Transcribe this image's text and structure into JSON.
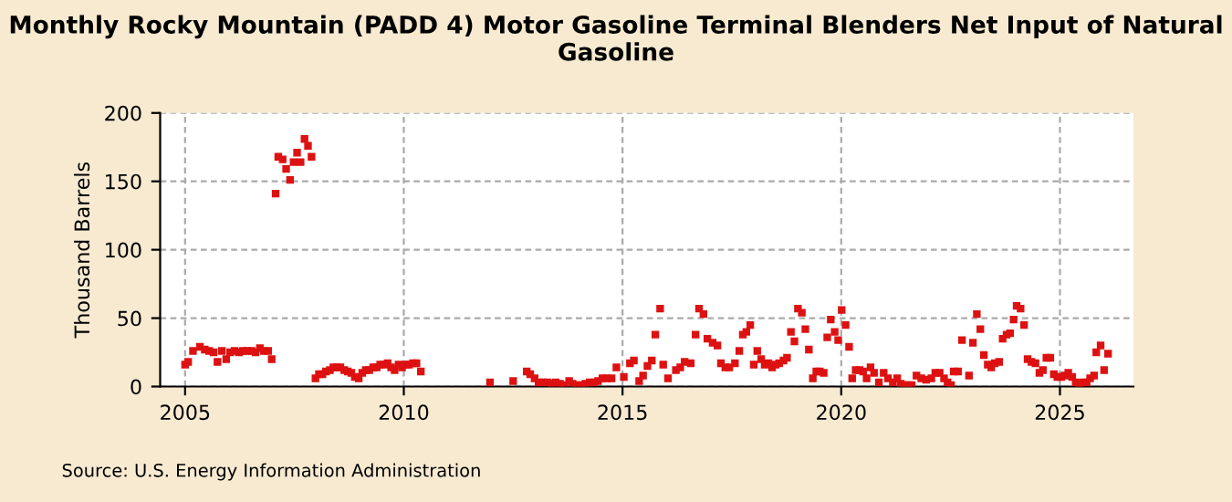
{
  "chart_data": {
    "type": "scatter",
    "title": "Monthly Rocky Mountain (PADD 4) Motor Gasoline Terminal Blenders Net Input of Natural Gasoline",
    "ylabel": "Thousand Barrels",
    "annotations": [
      "Source: U.S. Energy Information Administration"
    ],
    "series": [
      {
        "color": "#dd1111",
        "x": [
          2005.0,
          2005.07,
          2005.18,
          2005.34,
          2005.45,
          2005.55,
          2005.65,
          2005.74,
          2005.84,
          2005.94,
          2006.03,
          2006.13,
          2006.23,
          2006.32,
          2006.42,
          2006.52,
          2006.61,
          2006.71,
          2006.8,
          2006.9,
          2006.98,
          2007.07,
          2007.13,
          2007.23,
          2007.31,
          2007.4,
          2007.48,
          2007.56,
          2007.64,
          2007.73,
          2007.81,
          2007.89,
          2007.98,
          2008.06,
          2008.14,
          2008.22,
          2008.31,
          2008.39,
          2008.47,
          2008.55,
          2008.64,
          2008.72,
          2008.8,
          2008.88,
          2008.97,
          2009.05,
          2009.13,
          2009.21,
          2009.3,
          2009.38,
          2009.46,
          2009.55,
          2009.63,
          2009.71,
          2009.79,
          2009.88,
          2009.96,
          2010.04,
          2010.12,
          2010.21,
          2010.29,
          2010.39,
          2011.97,
          2012.5,
          2012.81,
          2012.89,
          2012.99,
          2013.08,
          2013.18,
          2013.28,
          2013.38,
          2013.47,
          2013.57,
          2013.67,
          2013.78,
          2013.86,
          2013.96,
          2014.06,
          2014.15,
          2014.25,
          2014.35,
          2014.44,
          2014.54,
          2014.64,
          2014.75,
          2014.86,
          2015.03,
          2015.17,
          2015.26,
          2015.38,
          2015.47,
          2015.57,
          2015.67,
          2015.75,
          2015.86,
          2015.93,
          2016.04,
          2016.22,
          2016.32,
          2016.42,
          2016.56,
          2016.67,
          2016.75,
          2016.85,
          2016.94,
          2017.06,
          2017.17,
          2017.25,
          2017.35,
          2017.44,
          2017.57,
          2017.67,
          2017.75,
          2017.83,
          2017.92,
          2018.0,
          2018.08,
          2018.17,
          2018.25,
          2018.33,
          2018.42,
          2018.5,
          2018.58,
          2018.68,
          2018.76,
          2018.85,
          2018.93,
          2019.01,
          2019.1,
          2019.18,
          2019.26,
          2019.35,
          2019.43,
          2019.51,
          2019.6,
          2019.68,
          2019.76,
          2019.85,
          2019.93,
          2020.01,
          2020.1,
          2020.18,
          2020.25,
          2020.33,
          2020.42,
          2020.5,
          2020.58,
          2020.67,
          2020.75,
          2020.86,
          2020.97,
          2021.07,
          2021.18,
          2021.28,
          2021.36,
          2021.44,
          2021.53,
          2021.61,
          2021.72,
          2021.83,
          2021.94,
          2022.06,
          2022.15,
          2022.25,
          2022.35,
          2022.43,
          2022.51,
          2022.57,
          2022.67,
          2022.76,
          2022.92,
          2023.01,
          2023.1,
          2023.18,
          2023.26,
          2023.35,
          2023.43,
          2023.51,
          2023.61,
          2023.69,
          2023.78,
          2023.86,
          2023.94,
          2024.01,
          2024.1,
          2024.18,
          2024.26,
          2024.35,
          2024.44,
          2024.53,
          2024.61,
          2024.69,
          2024.78,
          2024.86,
          2024.94,
          2025.03,
          2025.11,
          2025.19,
          2025.28,
          2025.36,
          2025.44,
          2025.53,
          2025.61,
          2025.69,
          2025.78,
          2025.83,
          2025.93,
          2026.01,
          2026.1
        ],
        "values": [
          16,
          18,
          26,
          29,
          27,
          26,
          25,
          18,
          26,
          20,
          25,
          26,
          25,
          26,
          26,
          26,
          25,
          28,
          26,
          26,
          20,
          141,
          168,
          166,
          159,
          151,
          164,
          171,
          164,
          181,
          176,
          168,
          6,
          9,
          9,
          11,
          12,
          14,
          14,
          14,
          12,
          11,
          10,
          7,
          6,
          10,
          12,
          12,
          14,
          14,
          16,
          16,
          17,
          14,
          12,
          16,
          14,
          16,
          16,
          17,
          17,
          11,
          3,
          4,
          11,
          9,
          6,
          3,
          3,
          3,
          2,
          3,
          2,
          1,
          4,
          2,
          1,
          1,
          2,
          3,
          3,
          4,
          6,
          6,
          6,
          14,
          7,
          17,
          19,
          4,
          8,
          15,
          19,
          38,
          57,
          16,
          6,
          12,
          14,
          18,
          17,
          38,
          57,
          53,
          35,
          32,
          30,
          17,
          14,
          14,
          17,
          26,
          38,
          40,
          45,
          16,
          26,
          20,
          16,
          17,
          14,
          16,
          17,
          19,
          21,
          40,
          33,
          57,
          54,
          42,
          27,
          6,
          11,
          11,
          10,
          36,
          49,
          40,
          34,
          56,
          45,
          29,
          6,
          12,
          12,
          11,
          6,
          14,
          10,
          3,
          10,
          6,
          3,
          6,
          2,
          1,
          1,
          1,
          8,
          6,
          5,
          6,
          10,
          10,
          6,
          3,
          1,
          11,
          11,
          34,
          8,
          32,
          53,
          42,
          23,
          16,
          14,
          17,
          18,
          35,
          38,
          39,
          49,
          59,
          57,
          45,
          20,
          18,
          17,
          10,
          12,
          21,
          21,
          9,
          7,
          7,
          8,
          10,
          7,
          3,
          1,
          3,
          3,
          6,
          8,
          25,
          30,
          12,
          24
        ]
      }
    ],
    "xlim": [
      2004.43,
      2026.68
    ],
    "xticks": [
      2005,
      2010,
      2015,
      2020,
      2025
    ],
    "ylim": [
      0,
      200
    ],
    "yticks": [
      0,
      50,
      100,
      150,
      200
    ],
    "grid": true,
    "marker": "square",
    "legend": false
  }
}
